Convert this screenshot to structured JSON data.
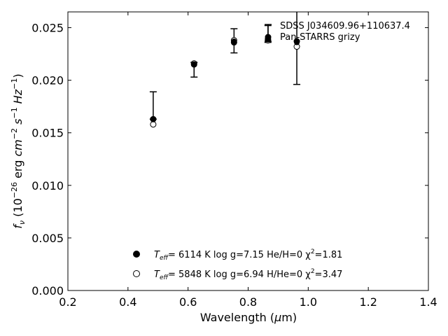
{
  "chart_data": {
    "type": "scatter",
    "xlabel": "Wavelength (μm)",
    "ylabel": "f_ν (10^-26 erg cm^-2 s^-1 Hz^-1)",
    "xlim": [
      0.2,
      1.4
    ],
    "ylim": [
      0.0,
      0.0265
    ],
    "xticks": [
      "0.2",
      "0.4",
      "0.6",
      "0.8",
      "1.0",
      "1.2",
      "1.4"
    ],
    "yticks": [
      "0.000",
      "0.005",
      "0.010",
      "0.015",
      "0.020",
      "0.025"
    ],
    "observed": {
      "name": "Pan-STARRS grizy",
      "title": "SDSS J034609.96+110637.4",
      "x": [
        0.484,
        0.62,
        0.753,
        0.866,
        0.962
      ],
      "y": [
        0.0163,
        0.0215,
        0.0237,
        0.024,
        0.0236
      ],
      "yerr_low": [
        0.0163,
        0.0203,
        0.0226,
        0.0236,
        0.0196
      ],
      "yerr_high": [
        0.0189,
        0.0217,
        0.0249,
        0.0252,
        0.029
      ]
    },
    "models": [
      {
        "style": "filled",
        "label": "T_eff=  6114 K  log g=7.15  He/H=0  χ²=1.81",
        "teff": "T",
        "teff_sub": "eff",
        "text": "=  6114 K  log g=7.15  He/H=0  χ",
        "chi_sup": "2",
        "chi_val": "=1.81",
        "x": [
          0.484,
          0.62,
          0.753,
          0.866,
          0.962
        ],
        "y": [
          0.0163,
          0.0215,
          0.0236,
          0.0239,
          0.0237
        ]
      },
      {
        "style": "open",
        "label": "T_eff=  5848 K  log g=6.94  H/He=0  χ²=3.47",
        "teff": "T",
        "teff_sub": "eff",
        "text": "=  5848 K  log g=6.94  H/He=0  χ",
        "chi_sup": "2",
        "chi_val": "=3.47",
        "x": [
          0.484,
          0.62,
          0.753,
          0.866,
          0.962
        ],
        "y": [
          0.0158,
          0.0216,
          0.0238,
          0.0238,
          0.0232
        ]
      }
    ],
    "legend_top": "top-right",
    "legend_bottom": "lower-center",
    "grid": false
  }
}
